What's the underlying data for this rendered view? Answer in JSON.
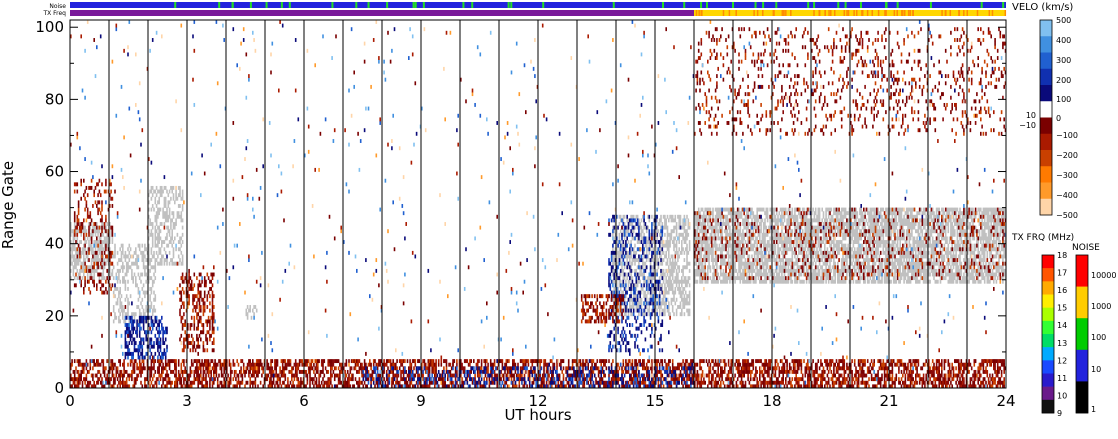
{
  "chart_data": {
    "type": "heatmap",
    "xlabel": "UT hours",
    "ylabel": "Range Gate",
    "xlim": [
      0,
      24
    ],
    "ylim": [
      0,
      102
    ],
    "x_ticks": [
      0,
      3,
      6,
      9,
      12,
      15,
      18,
      21,
      24
    ],
    "y_ticks": [
      0,
      20,
      40,
      60,
      80,
      100
    ],
    "minor_x_step": 1,
    "ground_scatter_color": "#c0c0c0",
    "top_strips": [
      {
        "label": "Noise",
        "dominant_color": "#2222dd",
        "accent_color": "#22dd22"
      },
      {
        "label": "TX Freq",
        "segments": [
          {
            "from": 0,
            "to": 16,
            "color": "#7a1a9a"
          },
          {
            "from": 16,
            "to": 24,
            "color": "#ffd700"
          }
        ],
        "accent_color": "#ff8c00"
      }
    ],
    "velo_scale": {
      "title": "VELO (km/s)",
      "colors": [
        "#ffd5a8",
        "#ff9a2a",
        "#ff7a00",
        "#c94000",
        "#aa1a00",
        "#7a0000",
        "#ffffff",
        "#0a0a7a",
        "#1030b0",
        "#2060d0",
        "#4090e0",
        "#80c0f0"
      ],
      "tick_labels": [
        "500",
        "400",
        "300",
        "200",
        "100",
        "0",
        "10",
        "−10",
        "−100",
        "−200",
        "−300",
        "−400",
        "−500"
      ]
    },
    "txfreq_scale": {
      "title": "TX FRQ (MHz)",
      "colors": [
        "#111111",
        "#6a1a8a",
        "#2a1acc",
        "#1a4aff",
        "#00aaff",
        "#00dd66",
        "#33ff33",
        "#aaff00",
        "#ffee00",
        "#ffaa00",
        "#ff5500",
        "#ff0000"
      ],
      "tick_labels": [
        "18",
        "17",
        "16",
        "15",
        "14",
        "13",
        "12",
        "11",
        "10",
        "9"
      ]
    },
    "noise_scale": {
      "title": "NOISE",
      "colors": [
        "#000000",
        "#2222dd",
        "#00cc00",
        "#ffcc00",
        "#ff0000"
      ],
      "tick_labels": [
        "10000",
        "1000",
        "100",
        "10",
        "1"
      ]
    },
    "regions": [
      {
        "name": "ground scatter",
        "kind": "ground",
        "x": [
          0,
          1.1
        ],
        "y": [
          30,
          46
        ],
        "density": 0.6
      },
      {
        "name": "ground scatter",
        "kind": "ground",
        "x": [
          1.1,
          2.2
        ],
        "y": [
          18,
          40
        ],
        "density": 0.35
      },
      {
        "name": "ground scatter",
        "kind": "ground",
        "x": [
          2.0,
          2.9
        ],
        "y": [
          34,
          56
        ],
        "density": 0.4
      },
      {
        "name": "ground scatter",
        "kind": "ground",
        "x": [
          4.5,
          4.8
        ],
        "y": [
          19,
          23
        ],
        "density": 0.5
      },
      {
        "name": "ground scatter",
        "kind": "ground",
        "x": [
          13.9,
          15.9
        ],
        "y": [
          20,
          48
        ],
        "density": 0.55
      },
      {
        "name": "ground scatter",
        "kind": "ground",
        "x": [
          16.0,
          24.0
        ],
        "y": [
          29,
          50
        ],
        "density": 0.7
      },
      {
        "name": "ionospheric scatter",
        "kind": "neg",
        "x": [
          0,
          24
        ],
        "y": [
          0,
          8
        ],
        "density": 0.55
      },
      {
        "name": "ionospheric scatter",
        "kind": "pos",
        "x": [
          7.5,
          16
        ],
        "y": [
          0,
          6
        ],
        "density": 0.25
      },
      {
        "name": "ionospheric scatter",
        "kind": "neg",
        "x": [
          2.8,
          3.7
        ],
        "y": [
          10,
          32
        ],
        "density": 0.4
      },
      {
        "name": "ionospheric scatter",
        "kind": "pos",
        "x": [
          1.4,
          2.5
        ],
        "y": [
          8,
          20
        ],
        "density": 0.5
      },
      {
        "name": "ionospheric scatter",
        "kind": "pos",
        "x": [
          13.8,
          15.2
        ],
        "y": [
          10,
          48
        ],
        "density": 0.25
      },
      {
        "name": "ionospheric scatter",
        "kind": "neg",
        "x": [
          13.1,
          14.2
        ],
        "y": [
          18,
          26
        ],
        "density": 0.5
      },
      {
        "name": "ionospheric scatter",
        "kind": "neg",
        "x": [
          0.1,
          1.1
        ],
        "y": [
          26,
          58
        ],
        "density": 0.2
      },
      {
        "name": "ionospheric scatter",
        "kind": "neg",
        "x": [
          16,
          24
        ],
        "y": [
          30,
          50
        ],
        "density": 0.12
      },
      {
        "name": "ionospheric scatter",
        "kind": "neg",
        "x": [
          16,
          24
        ],
        "y": [
          70,
          100
        ],
        "density": 0.12
      },
      {
        "name": "ionospheric scatter",
        "kind": "sparse",
        "x": [
          0,
          24
        ],
        "y": [
          0,
          102
        ],
        "density": 0.012
      }
    ]
  }
}
